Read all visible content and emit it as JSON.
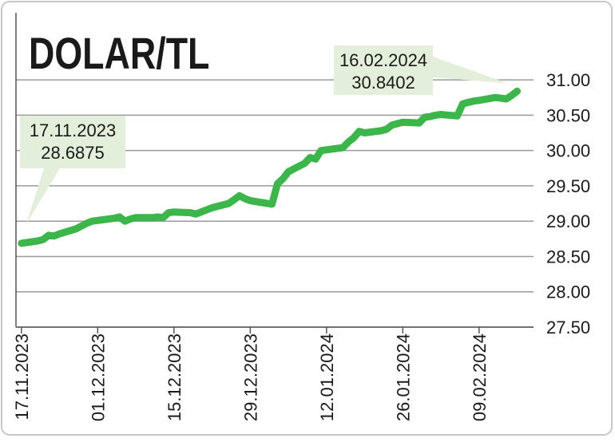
{
  "chart_data": {
    "type": "line",
    "title": "DOLAR/TL",
    "x": [
      "2023-11-17",
      "2023-11-20",
      "2023-11-21",
      "2023-11-22",
      "2023-11-23",
      "2023-11-24",
      "2023-11-27",
      "2023-11-28",
      "2023-11-29",
      "2023-11-30",
      "2023-12-01",
      "2023-12-04",
      "2023-12-05",
      "2023-12-06",
      "2023-12-07",
      "2023-12-08",
      "2023-12-11",
      "2023-12-12",
      "2023-12-13",
      "2023-12-14",
      "2023-12-15",
      "2023-12-18",
      "2023-12-19",
      "2023-12-20",
      "2023-12-21",
      "2023-12-22",
      "2023-12-25",
      "2023-12-26",
      "2023-12-27",
      "2023-12-28",
      "2023-12-29",
      "2024-01-02",
      "2024-01-03",
      "2024-01-04",
      "2024-01-05",
      "2024-01-08",
      "2024-01-09",
      "2024-01-10",
      "2024-01-11",
      "2024-01-12",
      "2024-01-15",
      "2024-01-16",
      "2024-01-17",
      "2024-01-18",
      "2024-01-19",
      "2024-01-22",
      "2024-01-23",
      "2024-01-24",
      "2024-01-25",
      "2024-01-26",
      "2024-01-29",
      "2024-01-30",
      "2024-01-31",
      "2024-02-01",
      "2024-02-02",
      "2024-02-05",
      "2024-02-06",
      "2024-02-07",
      "2024-02-08",
      "2024-02-09",
      "2024-02-12",
      "2024-02-13",
      "2024-02-14",
      "2024-02-15",
      "2024-02-16"
    ],
    "series": [
      {
        "color": "#3cb54a",
        "values": [
          28.6875,
          28.72,
          28.74,
          28.8,
          28.79,
          28.82,
          28.89,
          28.93,
          28.97,
          29.0,
          29.01,
          29.04,
          29.06,
          29.0,
          29.03,
          29.05,
          29.05,
          29.06,
          29.05,
          29.12,
          29.13,
          29.12,
          29.1,
          29.13,
          29.16,
          29.19,
          29.25,
          29.3,
          29.36,
          29.32,
          29.29,
          29.24,
          29.53,
          29.6,
          29.7,
          29.82,
          29.9,
          29.88,
          30.0,
          30.01,
          30.04,
          30.12,
          30.18,
          30.27,
          30.25,
          30.28,
          30.3,
          30.36,
          30.38,
          30.4,
          30.39,
          30.47,
          30.48,
          30.5,
          30.51,
          30.49,
          30.66,
          30.68,
          30.7,
          30.71,
          30.75,
          30.74,
          30.73,
          30.78,
          30.8402
        ]
      }
    ],
    "xlim": [
      "2023-11-16",
      "2024-02-19"
    ],
    "xticks": [
      {
        "value": "2023-11-17",
        "label": "17.11.2023"
      },
      {
        "value": "2023-12-01",
        "label": "01.12.2023"
      },
      {
        "value": "2023-12-15",
        "label": "15.12.2023"
      },
      {
        "value": "2023-12-29",
        "label": "29.12.2023"
      },
      {
        "value": "2024-01-12",
        "label": "12.01.2024"
      },
      {
        "value": "2024-01-26",
        "label": "26.01.2024"
      },
      {
        "value": "2024-02-09",
        "label": "09.02.2024"
      }
    ],
    "ylim": [
      27.5,
      31.95
    ],
    "yticks": [
      {
        "value": 27.5,
        "label": "27.50"
      },
      {
        "value": 28,
        "label": "28.00"
      },
      {
        "value": 28.5,
        "label": "28.50"
      },
      {
        "value": 29,
        "label": "29.00"
      },
      {
        "value": 29.5,
        "label": "29.50"
      },
      {
        "value": 30,
        "label": "30.00"
      },
      {
        "value": 30.5,
        "label": "30.50"
      },
      {
        "value": 31,
        "label": "31.00"
      }
    ],
    "grid": true,
    "annotations": [
      {
        "label": "17.11.2023",
        "value": 28.6875
      },
      {
        "label": "16.02.2024",
        "value": 30.8402
      }
    ]
  }
}
